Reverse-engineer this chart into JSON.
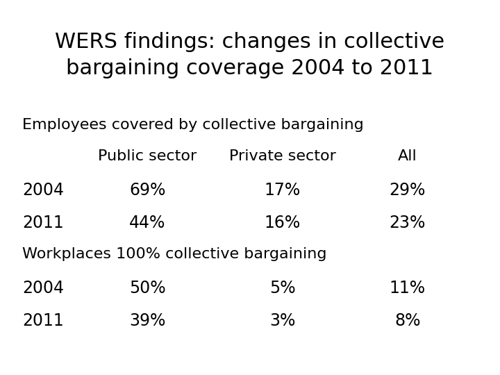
{
  "title_line1": "WERS findings: changes in collective",
  "title_line2": "bargaining coverage 2004 to 2011",
  "title_fontsize": 22,
  "background_color": "#ffffff",
  "text_color": "#000000",
  "section1_header": "Employees covered by collective bargaining",
  "section2_header": "Workplaces 100% collective bargaining",
  "col_header_public": "Public sector",
  "col_header_private": "Private sector",
  "col_header_all": "All",
  "rows": [
    {
      "section": 1,
      "year": "2004",
      "public": "69%",
      "private": "17%",
      "all": "29%"
    },
    {
      "section": 1,
      "year": "2011",
      "public": "44%",
      "private": "16%",
      "all": "23%"
    },
    {
      "section": 2,
      "year": "2004",
      "public": "50%",
      "private": "5%",
      "all": "11%"
    },
    {
      "section": 2,
      "year": "2011",
      "public": "39%",
      "private": "3%",
      "all": "8%"
    }
  ],
  "col_x_fig": {
    "year": 0.045,
    "public": 0.295,
    "private": 0.565,
    "all": 0.815
  },
  "header_fontsize": 16,
  "data_fontsize": 17,
  "section_header_fontsize": 16,
  "title_fontweight": "normal"
}
